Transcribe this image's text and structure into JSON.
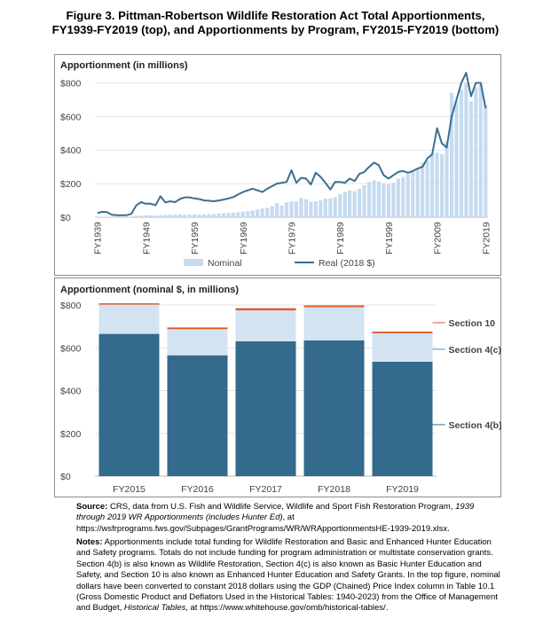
{
  "title_line1": "Figure 3. Pittman-Robertson Wildlife Restoration Act Total Apportionments,",
  "title_line2": "FY1939-FY2019 (top), and Apportionments by Program, FY2015-FY2019 (bottom)",
  "colors": {
    "nominal": "#c6dbef",
    "real": "#3c6e8f",
    "s4b": "#346a8c",
    "s4c": "#d3e3f1",
    "s10": "#e05a2b",
    "axis": "#bdbdbd"
  },
  "chart_data": [
    {
      "type": "bar+line",
      "ylabel": "Apportionment (in millions)",
      "ylim": [
        0,
        850
      ],
      "yticks": [
        0,
        200,
        400,
        600,
        800
      ],
      "ytick_labels": [
        "$0",
        "$200",
        "$400",
        "$600",
        "$800"
      ],
      "xticks": [
        "FY1939",
        "FY1949",
        "FY1959",
        "FY1969",
        "FY1979",
        "FY1989",
        "FY1999",
        "FY2009",
        "FY2019"
      ],
      "legend": [
        "Nominal",
        "Real (2018 $)"
      ],
      "x": [
        1939,
        1940,
        1941,
        1942,
        1943,
        1944,
        1945,
        1946,
        1947,
        1948,
        1949,
        1950,
        1951,
        1952,
        1953,
        1954,
        1955,
        1956,
        1957,
        1958,
        1959,
        1960,
        1961,
        1962,
        1963,
        1964,
        1965,
        1966,
        1967,
        1968,
        1969,
        1970,
        1971,
        1972,
        1973,
        1974,
        1975,
        1976,
        1977,
        1978,
        1979,
        1980,
        1981,
        1982,
        1983,
        1984,
        1985,
        1986,
        1987,
        1988,
        1989,
        1990,
        1991,
        1992,
        1993,
        1994,
        1995,
        1996,
        1997,
        1998,
        1999,
        2000,
        2001,
        2002,
        2003,
        2004,
        2005,
        2006,
        2007,
        2008,
        2009,
        2010,
        2011,
        2012,
        2013,
        2014,
        2015,
        2016,
        2017,
        2018,
        2019
      ],
      "series": [
        {
          "name": "Nominal",
          "values": [
            1,
            2,
            2,
            1,
            1,
            1,
            1,
            2,
            8,
            10,
            12,
            12,
            11,
            12,
            13,
            14,
            15,
            16,
            17,
            16,
            16,
            17,
            17,
            18,
            19,
            21,
            24,
            25,
            27,
            29,
            33,
            36,
            40,
            46,
            52,
            56,
            65,
            85,
            70,
            88,
            95,
            95,
            115,
            108,
            92,
            95,
            100,
            110,
            112,
            120,
            138,
            150,
            160,
            155,
            170,
            190,
            210,
            220,
            212,
            200,
            195,
            205,
            230,
            240,
            260,
            275,
            290,
            325,
            340,
            380,
            385,
            375,
            455,
            740,
            690,
            760,
            800,
            690,
            775,
            790,
            670
          ]
        },
        {
          "name": "Real (2018 $)",
          "values": [
            25,
            32,
            30,
            15,
            12,
            12,
            12,
            20,
            70,
            90,
            80,
            80,
            72,
            125,
            88,
            95,
            90,
            108,
            118,
            118,
            112,
            108,
            100,
            98,
            95,
            100,
            105,
            112,
            120,
            135,
            150,
            160,
            170,
            160,
            150,
            170,
            185,
            200,
            205,
            210,
            280,
            205,
            235,
            230,
            195,
            265,
            240,
            205,
            165,
            210,
            210,
            205,
            230,
            215,
            258,
            270,
            300,
            325,
            310,
            250,
            230,
            250,
            270,
            275,
            265,
            275,
            290,
            300,
            350,
            375,
            530,
            440,
            415,
            600,
            700,
            800,
            860,
            720,
            800,
            800,
            650
          ]
        }
      ]
    },
    {
      "type": "bar",
      "stacked": true,
      "ylabel": "Apportionment (nominal $, in millions)",
      "ylim": [
        0,
        800
      ],
      "yticks": [
        0,
        200,
        400,
        600,
        800
      ],
      "ytick_labels": [
        "$0",
        "$200",
        "$400",
        "$600",
        "$800"
      ],
      "categories": [
        "FY2015",
        "FY2016",
        "FY2017",
        "FY2018",
        "FY2019"
      ],
      "series": [
        {
          "name": "Section 4(b)",
          "values": [
            665,
            565,
            630,
            635,
            535
          ]
        },
        {
          "name": "Section 4(c)",
          "values": [
            140,
            122,
            145,
            155,
            133
          ]
        },
        {
          "name": "Section 10",
          "values": [
            3,
            8,
            10,
            8,
            8
          ]
        }
      ]
    }
  ],
  "notes": {
    "source_label": "Source:",
    "source_text": " CRS, data from U.S. Fish and Wildlife Service, Wildlife and Sport Fish Restoration Program, ",
    "source_italic": "1939 through 2019 WR Apportionments (includes Hunter Ed)",
    "source_text2": ", at https://wsfrprograms.fws.gov/Subpages/GrantPrograms/WR/WRApportionmentsHE-1939-2019.xlsx.",
    "notes_label": "Notes:",
    "notes_text": " Apportionments include total funding for Wildlife Restoration and Basic and Enhanced Hunter Education and Safety programs. Totals do not include funding for program administration or multistate conservation grants. Section 4(b) is also known as Wildlife Restoration, Section 4(c) is also known as Basic Hunter Education and Safety, and Section 10 is also known as Enhanced Hunter Education and Safety Grants. In the top figure, nominal dollars have been converted to constant 2018 dollars using the GDP (Chained) Price Index column in Table 10.1 (Gross Domestic Product and Deflators Used in the Historical Tables: 1940-2023) from the Office of Management and Budget, ",
    "notes_italic": "Historical Tables",
    "notes_text2": ", at https://www.whitehouse.gov/omb/historical-tables/."
  }
}
